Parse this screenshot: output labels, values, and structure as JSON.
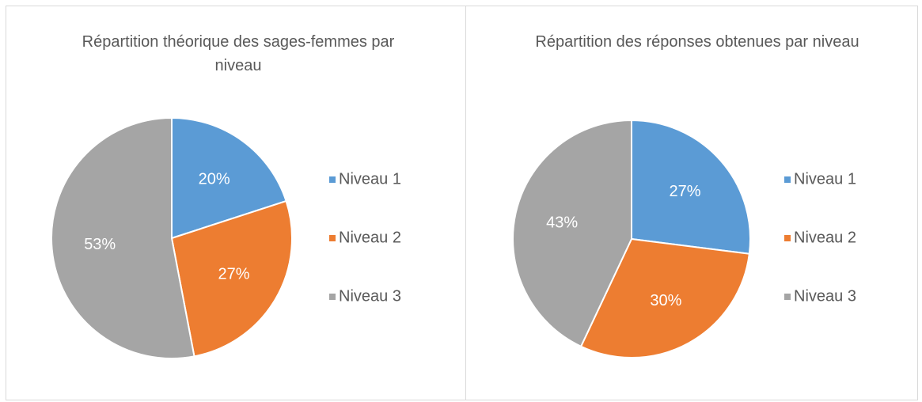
{
  "chart_data": [
    {
      "type": "pie",
      "title": "Répartition théorique des sages-femmes par niveau",
      "categories": [
        "Niveau 1",
        "Niveau 2",
        "Niveau 3"
      ],
      "values": [
        20,
        27,
        53
      ],
      "value_labels": [
        "20%",
        "27%",
        "53%"
      ],
      "colors": [
        "#5b9bd5",
        "#ed7d31",
        "#a5a5a5"
      ],
      "legend": "right"
    },
    {
      "type": "pie",
      "title": "Répartition des réponses obtenues par niveau",
      "categories": [
        "Niveau 1",
        "Niveau 2",
        "Niveau 3"
      ],
      "values": [
        27,
        30,
        43
      ],
      "value_labels": [
        "27%",
        "30%",
        "43%"
      ],
      "colors": [
        "#5b9bd5",
        "#ed7d31",
        "#a5a5a5"
      ],
      "legend": "right"
    }
  ]
}
